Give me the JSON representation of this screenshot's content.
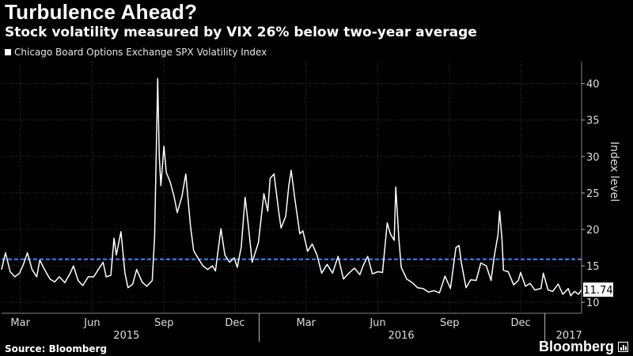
{
  "header": {
    "title": "Turbulence Ahead?",
    "subtitle": "Stock volatility measured by VIX 26% below two-year average"
  },
  "footer": {
    "source": "Source: Bloomberg",
    "brand": "Bloomberg"
  },
  "colors": {
    "background": "#000000",
    "series": "#ffffff",
    "average_line": "#3d85ff",
    "grid": "#444444"
  },
  "chart_data": {
    "type": "line",
    "title": "Turbulence Ahead?",
    "subtitle": "Stock volatility measured by VIX 26% below two-year average",
    "ylabel": "Index level",
    "ylim": [
      8.5,
      43
    ],
    "yticks": [
      10,
      15,
      20,
      25,
      30,
      35,
      40
    ],
    "xlim": [
      "2015-02-05",
      "2017-02-17"
    ],
    "x_tick_labels": [
      {
        "label": "Mar",
        "date": "2015-03-01"
      },
      {
        "label": "Jun",
        "date": "2015-06-01"
      },
      {
        "label": "Sep",
        "date": "2015-09-01"
      },
      {
        "label": "Dec",
        "date": "2015-12-01"
      },
      {
        "label": "Mar",
        "date": "2016-03-01"
      },
      {
        "label": "Jun",
        "date": "2016-06-01"
      },
      {
        "label": "Sep",
        "date": "2016-09-01"
      },
      {
        "label": "Dec",
        "date": "2016-12-01"
      }
    ],
    "year_labels": [
      {
        "label": "2015",
        "date": "2015-07-15"
      },
      {
        "label": "2016",
        "date": "2016-07-01"
      },
      {
        "label": "2017",
        "date": "2017-02-01"
      }
    ],
    "year_dividers": [
      "2016-01-01",
      "2017-01-01"
    ],
    "grid": true,
    "legend_position": "top-left",
    "series": [
      {
        "name": "Chicago Board Options Exchange SPX Volatility Index",
        "color": "#ffffff",
        "points": [
          [
            "2015-02-05",
            14.5
          ],
          [
            "2015-02-10",
            16.8
          ],
          [
            "2015-02-16",
            14.2
          ],
          [
            "2015-02-22",
            13.5
          ],
          [
            "2015-02-28",
            14.0
          ],
          [
            "2015-03-05",
            15.2
          ],
          [
            "2015-03-10",
            16.8
          ],
          [
            "2015-03-16",
            14.5
          ],
          [
            "2015-03-22",
            13.5
          ],
          [
            "2015-03-26",
            15.8
          ],
          [
            "2015-04-01",
            14.5
          ],
          [
            "2015-04-08",
            13.2
          ],
          [
            "2015-04-14",
            12.8
          ],
          [
            "2015-04-20",
            13.5
          ],
          [
            "2015-04-27",
            12.7
          ],
          [
            "2015-05-04",
            14.0
          ],
          [
            "2015-05-08",
            15.0
          ],
          [
            "2015-05-14",
            13.0
          ],
          [
            "2015-05-20",
            12.3
          ],
          [
            "2015-05-27",
            13.5
          ],
          [
            "2015-06-03",
            13.5
          ],
          [
            "2015-06-09",
            14.5
          ],
          [
            "2015-06-15",
            15.5
          ],
          [
            "2015-06-19",
            13.5
          ],
          [
            "2015-06-25",
            13.7
          ],
          [
            "2015-06-29",
            18.8
          ],
          [
            "2015-07-02",
            16.5
          ],
          [
            "2015-07-08",
            19.7
          ],
          [
            "2015-07-13",
            14.0
          ],
          [
            "2015-07-17",
            12.0
          ],
          [
            "2015-07-23",
            12.5
          ],
          [
            "2015-07-28",
            14.5
          ],
          [
            "2015-08-04",
            12.8
          ],
          [
            "2015-08-10",
            12.2
          ],
          [
            "2015-08-17",
            13.0
          ],
          [
            "2015-08-20",
            19.0
          ],
          [
            "2015-08-24",
            40.7
          ],
          [
            "2015-08-26",
            30.0
          ],
          [
            "2015-08-28",
            26.0
          ],
          [
            "2015-09-01",
            31.4
          ],
          [
            "2015-09-04",
            27.8
          ],
          [
            "2015-09-09",
            26.5
          ],
          [
            "2015-09-14",
            24.5
          ],
          [
            "2015-09-18",
            22.3
          ],
          [
            "2015-09-24",
            24.5
          ],
          [
            "2015-09-29",
            27.6
          ],
          [
            "2015-10-05",
            20.5
          ],
          [
            "2015-10-09",
            17.1
          ],
          [
            "2015-10-15",
            16.0
          ],
          [
            "2015-10-21",
            15.0
          ],
          [
            "2015-10-27",
            14.5
          ],
          [
            "2015-11-02",
            15.0
          ],
          [
            "2015-11-06",
            14.3
          ],
          [
            "2015-11-13",
            20.1
          ],
          [
            "2015-11-18",
            16.5
          ],
          [
            "2015-11-24",
            15.5
          ],
          [
            "2015-11-30",
            16.1
          ],
          [
            "2015-12-04",
            14.8
          ],
          [
            "2015-12-09",
            17.6
          ],
          [
            "2015-12-14",
            24.4
          ],
          [
            "2015-12-18",
            20.7
          ],
          [
            "2015-12-23",
            15.5
          ],
          [
            "2015-12-31",
            18.2
          ],
          [
            "2016-01-07",
            24.9
          ],
          [
            "2016-01-12",
            22.5
          ],
          [
            "2016-01-15",
            27.0
          ],
          [
            "2016-01-20",
            27.6
          ],
          [
            "2016-01-26",
            22.5
          ],
          [
            "2016-01-29",
            20.2
          ],
          [
            "2016-02-04",
            21.8
          ],
          [
            "2016-02-08",
            26.0
          ],
          [
            "2016-02-11",
            28.1
          ],
          [
            "2016-02-16",
            24.0
          ],
          [
            "2016-02-22",
            19.4
          ],
          [
            "2016-02-26",
            19.8
          ],
          [
            "2016-03-03",
            17.0
          ],
          [
            "2016-03-09",
            18.0
          ],
          [
            "2016-03-15",
            16.5
          ],
          [
            "2016-03-21",
            14.0
          ],
          [
            "2016-03-28",
            15.2
          ],
          [
            "2016-04-04",
            14.0
          ],
          [
            "2016-04-11",
            16.3
          ],
          [
            "2016-04-18",
            13.2
          ],
          [
            "2016-04-25",
            14.0
          ],
          [
            "2016-05-02",
            14.7
          ],
          [
            "2016-05-09",
            13.8
          ],
          [
            "2016-05-13",
            15.0
          ],
          [
            "2016-05-19",
            16.3
          ],
          [
            "2016-05-25",
            13.9
          ],
          [
            "2016-06-01",
            14.2
          ],
          [
            "2016-06-07",
            14.1
          ],
          [
            "2016-06-13",
            20.9
          ],
          [
            "2016-06-17",
            19.4
          ],
          [
            "2016-06-22",
            18.5
          ],
          [
            "2016-06-24",
            25.8
          ],
          [
            "2016-06-28",
            18.7
          ],
          [
            "2016-07-01",
            14.8
          ],
          [
            "2016-07-08",
            13.2
          ],
          [
            "2016-07-15",
            12.7
          ],
          [
            "2016-07-22",
            12.0
          ],
          [
            "2016-07-29",
            11.9
          ],
          [
            "2016-08-05",
            11.4
          ],
          [
            "2016-08-12",
            11.6
          ],
          [
            "2016-08-19",
            11.3
          ],
          [
            "2016-08-26",
            13.6
          ],
          [
            "2016-09-02",
            11.9
          ],
          [
            "2016-09-09",
            17.5
          ],
          [
            "2016-09-13",
            17.8
          ],
          [
            "2016-09-16",
            15.4
          ],
          [
            "2016-09-22",
            12.0
          ],
          [
            "2016-09-28",
            13.1
          ],
          [
            "2016-10-05",
            13.0
          ],
          [
            "2016-10-11",
            15.4
          ],
          [
            "2016-10-18",
            15.0
          ],
          [
            "2016-10-24",
            13.0
          ],
          [
            "2016-10-28",
            16.2
          ],
          [
            "2016-11-02",
            19.3
          ],
          [
            "2016-11-04",
            22.5
          ],
          [
            "2016-11-07",
            18.7
          ],
          [
            "2016-11-09",
            14.4
          ],
          [
            "2016-11-15",
            14.2
          ],
          [
            "2016-11-22",
            12.4
          ],
          [
            "2016-11-28",
            13.0
          ],
          [
            "2016-12-01",
            14.1
          ],
          [
            "2016-12-07",
            12.2
          ],
          [
            "2016-12-13",
            12.6
          ],
          [
            "2016-12-19",
            11.7
          ],
          [
            "2016-12-27",
            11.9
          ],
          [
            "2016-12-30",
            14.0
          ],
          [
            "2017-01-05",
            11.7
          ],
          [
            "2017-01-11",
            11.5
          ],
          [
            "2017-01-18",
            12.5
          ],
          [
            "2017-01-24",
            11.1
          ],
          [
            "2017-01-31",
            11.9
          ],
          [
            "2017-02-03",
            10.9
          ],
          [
            "2017-02-08",
            11.5
          ],
          [
            "2017-02-13",
            11.1
          ],
          [
            "2017-02-17",
            11.74
          ]
        ]
      }
    ],
    "reference_lines": [
      {
        "y": 15.9,
        "color": "#3d85ff",
        "style": "dashed"
      }
    ],
    "last_value_label": "11.74"
  }
}
